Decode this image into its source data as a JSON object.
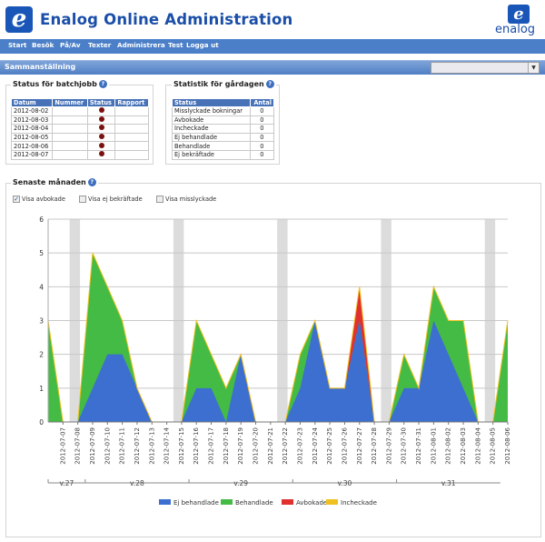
{
  "app": {
    "title": "Enalog Online Administration",
    "logo_letter": "e",
    "brand_text": "enalog"
  },
  "nav": {
    "items": [
      "Start",
      "Besök",
      "På/Av",
      "Texter",
      "Administrera",
      "Test",
      "Logga ut"
    ]
  },
  "section_bar": {
    "title": "Sammanställning",
    "select_value": ""
  },
  "batch_panel": {
    "title": "Status för batchjobb",
    "help_icon": "?",
    "columns": [
      "Datum",
      "Nummer",
      "Status",
      "Rapport"
    ],
    "rows": [
      {
        "date": "2012-08-02",
        "number": "",
        "report": ""
      },
      {
        "date": "2012-08-03",
        "number": "",
        "report": ""
      },
      {
        "date": "2012-08-04",
        "number": "",
        "report": ""
      },
      {
        "date": "2012-08-05",
        "number": "",
        "report": ""
      },
      {
        "date": "2012-08-06",
        "number": "",
        "report": ""
      },
      {
        "date": "2012-08-07",
        "number": "",
        "report": ""
      }
    ],
    "status_color": "#7a1010"
  },
  "stats_panel": {
    "title": "Statistik för gårdagen",
    "help_icon": "?",
    "columns": [
      "Status",
      "Antal"
    ],
    "rows": [
      {
        "status": "Misslyckade bokningar",
        "count": "0"
      },
      {
        "status": "Avbokade",
        "count": "0"
      },
      {
        "status": "Incheckade",
        "count": "0"
      },
      {
        "status": "Ej behandlade",
        "count": "0"
      },
      {
        "status": "Behandlade",
        "count": "0"
      },
      {
        "status": "Ej bekräftade",
        "count": "0"
      }
    ]
  },
  "month_panel": {
    "title": "Senaste månaden",
    "help_icon": "?",
    "checkboxes": [
      {
        "label": "Visa avbokade",
        "checked": true
      },
      {
        "label": "Visa ej bekräftade",
        "checked": false
      },
      {
        "label": "Visa misslyckade",
        "checked": false
      }
    ]
  },
  "chart_data": {
    "type": "area",
    "x": [
      "2012-07-07",
      "2012-07-08",
      "2012-07-09",
      "2012-07-10",
      "2012-07-11",
      "2012-07-12",
      "2012-07-13",
      "2012-07-14",
      "2012-07-15",
      "2012-07-16",
      "2012-07-17",
      "2012-07-18",
      "2012-07-19",
      "2012-07-20",
      "2012-07-21",
      "2012-07-22",
      "2012-07-23",
      "2012-07-24",
      "2012-07-25",
      "2012-07-26",
      "2012-07-27",
      "2012-07-28",
      "2012-07-29",
      "2012-07-30",
      "2012-07-31",
      "2012-08-01",
      "2012-08-02",
      "2012-08-03",
      "2012-08-04",
      "2012-08-05",
      "2012-08-06"
    ],
    "x_start_value": 3,
    "weekend_bands": [
      [
        "2012-07-07",
        "2012-07-08"
      ],
      [
        "2012-07-14",
        "2012-07-15"
      ],
      [
        "2012-07-21",
        "2012-07-22"
      ],
      [
        "2012-07-28",
        "2012-07-29"
      ],
      [
        "2012-08-04",
        "2012-08-05"
      ]
    ],
    "weeks": [
      {
        "label": "v.27",
        "from": "2012-07-07",
        "to": "2012-07-08"
      },
      {
        "label": "v.28",
        "from": "2012-07-09",
        "to": "2012-07-15"
      },
      {
        "label": "v.29",
        "from": "2012-07-16",
        "to": "2012-07-22"
      },
      {
        "label": "v.30",
        "from": "2012-07-23",
        "to": "2012-07-29"
      },
      {
        "label": "v.31",
        "from": "2012-07-30",
        "to": "2012-08-05"
      }
    ],
    "ylim": [
      0,
      6
    ],
    "yticks": [
      0,
      1,
      2,
      3,
      4,
      5,
      6
    ],
    "grid": true,
    "legend_position": "bottom",
    "series": [
      {
        "name": "Ej behandlade",
        "color": "#3c6fd0",
        "values": [
          0,
          0,
          1,
          2,
          2,
          1,
          0,
          0,
          0,
          1,
          1,
          0,
          2,
          0,
          0,
          0,
          1,
          3,
          1,
          1,
          3,
          0,
          0,
          1,
          1,
          3,
          2,
          1,
          0,
          0,
          0
        ]
      },
      {
        "name": "Behandlade",
        "color": "#44bb44",
        "values": [
          0,
          0,
          4,
          2,
          1,
          0,
          0,
          0,
          0,
          2,
          1,
          1,
          0,
          0,
          0,
          0,
          1,
          0,
          0,
          0,
          0,
          0,
          0,
          1,
          0,
          1,
          1,
          2,
          0,
          0,
          3
        ]
      },
      {
        "name": "Avbokade",
        "color": "#e03030",
        "values": [
          0,
          0,
          0,
          0,
          0,
          0,
          0,
          0,
          0,
          0,
          0,
          0,
          0,
          0,
          0,
          0,
          0,
          0,
          0,
          0,
          1,
          0,
          0,
          0,
          0,
          0,
          0,
          0,
          0,
          0,
          0
        ]
      },
      {
        "name": "Incheckade",
        "color": "#f0c020",
        "values": [
          0,
          0,
          0,
          0,
          0,
          0,
          0,
          0,
          0,
          0,
          0,
          0,
          0,
          0,
          0,
          0,
          0,
          0,
          0,
          0,
          0,
          0,
          0,
          0,
          0,
          0,
          0,
          0,
          0,
          0,
          0
        ]
      }
    ]
  }
}
